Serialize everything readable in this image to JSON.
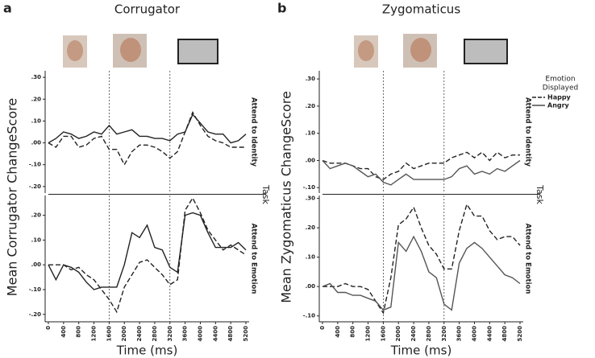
{
  "panels": [
    {
      "label": "a",
      "title": "Corrugator",
      "ylabel": "Mean Corrugator ChangeScore",
      "xlabel": "Time (ms)",
      "task_label": "Task"
    },
    {
      "label": "b",
      "title": "Zygomaticus",
      "ylabel": "Mean Zygomaticus ChangeScore",
      "xlabel": "Time (ms)",
      "task_label": "Task"
    }
  ],
  "legend": {
    "title": [
      "Emotion",
      "Displayed"
    ],
    "position": "upper right"
  },
  "chart_data": [
    {
      "type": "line",
      "title": "Attend to Identity",
      "x": [
        0,
        200,
        400,
        600,
        800,
        1000,
        1200,
        1400,
        1600,
        1800,
        2000,
        2200,
        2400,
        2600,
        2800,
        3000,
        3200,
        3400,
        3600,
        3800,
        4000,
        4200,
        4400,
        4600,
        4800,
        5000,
        5200
      ],
      "xlim": [
        0,
        5200
      ],
      "ylim": [
        -0.23,
        0.33
      ],
      "vlines": [
        1600,
        3200
      ],
      "yticks": [
        {
          "value": 0.3,
          "label": ".30"
        },
        {
          "value": 0.2,
          "label": ".20"
        },
        {
          "value": 0.1,
          "label": ".10"
        },
        {
          "value": 0,
          "label": ".00"
        },
        {
          "value": -0.1,
          "label": "-.10"
        },
        {
          "value": -0.2,
          "label": "-.20"
        }
      ],
      "series": [
        {
          "name": "Happy",
          "color": "#222222",
          "dash": "dashed",
          "values": [
            0,
            -0.02,
            0.03,
            0.03,
            -0.02,
            -0.01,
            0.02,
            0.03,
            -0.03,
            -0.03,
            -0.1,
            -0.04,
            -0.01,
            -0.01,
            -0.02,
            -0.04,
            -0.07,
            -0.04,
            0.05,
            0.14,
            0.08,
            0.03,
            0.01,
            0,
            -0.02,
            -0.02,
            -0.02
          ]
        },
        {
          "name": "Angry",
          "color": "#222222",
          "dash": "solid",
          "values": [
            0,
            0.02,
            0.05,
            0.04,
            0.02,
            0.03,
            0.05,
            0.04,
            0.08,
            0.04,
            0.05,
            0.06,
            0.03,
            0.03,
            0.02,
            0.02,
            0.01,
            0.04,
            0.05,
            0.13,
            0.09,
            0.05,
            0.04,
            0.04,
            0,
            0.01,
            0.04
          ]
        }
      ]
    },
    {
      "type": "line",
      "title": "Attend to Emotion",
      "x": [
        0,
        200,
        400,
        600,
        800,
        1000,
        1200,
        1400,
        1600,
        1800,
        2000,
        2200,
        2400,
        2600,
        2800,
        3000,
        3200,
        3400,
        3600,
        3800,
        4000,
        4200,
        4400,
        4600,
        4800,
        5000,
        5200
      ],
      "xlim": [
        0,
        5200
      ],
      "ylim": [
        -0.23,
        0.28
      ],
      "vlines": [
        1600,
        3200
      ],
      "xticks": [
        0,
        400,
        800,
        1200,
        1600,
        2000,
        2400,
        2800,
        3200,
        3600,
        4000,
        4400,
        4800,
        5200
      ],
      "yticks": [
        {
          "value": 0.2,
          "label": ".20"
        },
        {
          "value": 0.1,
          "label": ".10"
        },
        {
          "value": 0,
          "label": ".00"
        },
        {
          "value": -0.1,
          "label": "-.10"
        },
        {
          "value": -0.2,
          "label": "-.20"
        }
      ],
      "series": [
        {
          "name": "Happy",
          "color": "#222222",
          "dash": "dashed",
          "values": [
            0,
            0,
            0,
            -0.02,
            -0.01,
            -0.04,
            -0.06,
            -0.1,
            -0.14,
            -0.19,
            -0.09,
            -0.04,
            0.01,
            0.02,
            -0.01,
            -0.04,
            -0.08,
            -0.06,
            0.22,
            0.27,
            0.21,
            0.14,
            0.1,
            0.06,
            0.08,
            0.06,
            0.04
          ]
        },
        {
          "name": "Angry",
          "color": "#222222",
          "dash": "solid",
          "values": [
            0,
            -0.06,
            0,
            -0.01,
            -0.03,
            -0.07,
            -0.1,
            -0.09,
            -0.09,
            -0.09,
            0,
            0.13,
            0.11,
            0.16,
            0.07,
            0.06,
            -0.01,
            -0.03,
            0.2,
            0.21,
            0.2,
            0.13,
            0.07,
            0.07,
            0.07,
            0.09,
            0.06
          ]
        }
      ]
    },
    {
      "type": "line",
      "title": "Attend to Identity",
      "x": [
        0,
        200,
        400,
        600,
        800,
        1000,
        1200,
        1400,
        1600,
        1800,
        2000,
        2200,
        2400,
        2600,
        2800,
        3000,
        3200,
        3400,
        3600,
        3800,
        4000,
        4200,
        4400,
        4600,
        4800,
        5000,
        5200
      ],
      "xlim": [
        0,
        5200
      ],
      "ylim": [
        -0.12,
        0.33
      ],
      "vlines": [
        1600,
        3200
      ],
      "yticks": [
        {
          "value": 0.3,
          "label": ".30"
        },
        {
          "value": 0.2,
          "label": ".20"
        },
        {
          "value": 0.1,
          "label": ".10"
        },
        {
          "value": 0,
          "label": ".00"
        },
        {
          "value": -0.1,
          "label": "-.10"
        }
      ],
      "series": [
        {
          "name": "Happy",
          "color": "#222222",
          "dash": "dashed",
          "values": [
            0,
            -0.01,
            -0.01,
            -0.01,
            -0.02,
            -0.03,
            -0.03,
            -0.06,
            -0.07,
            -0.05,
            -0.04,
            -0.01,
            -0.03,
            -0.02,
            -0.01,
            -0.01,
            -0.01,
            0.01,
            0.02,
            0.03,
            0.01,
            0.03,
            0,
            0.03,
            0.01,
            0.02,
            0.02
          ]
        },
        {
          "name": "Angry",
          "color": "#555555",
          "dash": "solid",
          "values": [
            0,
            -0.03,
            -0.02,
            -0.01,
            -0.02,
            -0.04,
            -0.06,
            -0.05,
            -0.08,
            -0.09,
            -0.07,
            -0.05,
            -0.07,
            -0.07,
            -0.07,
            -0.07,
            -0.07,
            -0.06,
            -0.03,
            -0.02,
            -0.05,
            -0.04,
            -0.05,
            -0.03,
            -0.04,
            -0.02,
            0
          ]
        }
      ]
    },
    {
      "type": "line",
      "title": "Attend to Emotion",
      "x": [
        0,
        200,
        400,
        600,
        800,
        1000,
        1200,
        1400,
        1600,
        1800,
        2000,
        2200,
        2400,
        2600,
        2800,
        3000,
        3200,
        3400,
        3600,
        3800,
        4000,
        4200,
        4400,
        4600,
        4800,
        5000,
        5200
      ],
      "xlim": [
        0,
        5200
      ],
      "ylim": [
        -0.12,
        0.31
      ],
      "vlines": [
        1600,
        3200
      ],
      "xticks": [
        0,
        400,
        800,
        1200,
        1600,
        2000,
        2400,
        2800,
        3200,
        3600,
        4000,
        4400,
        4800,
        5200
      ],
      "yticks": [
        {
          "value": 0.3,
          "label": ".30"
        },
        {
          "value": 0.2,
          "label": ".20"
        },
        {
          "value": 0.1,
          "label": ".10"
        },
        {
          "value": 0,
          "label": ".00"
        },
        {
          "value": -0.1,
          "label": "-.10"
        }
      ],
      "series": [
        {
          "name": "Happy",
          "color": "#222222",
          "dash": "dashed",
          "values": [
            0,
            0,
            0,
            0.01,
            0,
            0,
            -0.01,
            -0.05,
            -0.09,
            0.03,
            0.21,
            0.23,
            0.27,
            0.2,
            0.14,
            0.11,
            0.06,
            0.06,
            0.19,
            0.28,
            0.24,
            0.24,
            0.19,
            0.16,
            0.17,
            0.17,
            0.14
          ]
        },
        {
          "name": "Angry",
          "color": "#555555",
          "dash": "solid",
          "values": [
            0,
            0.01,
            -0.02,
            -0.02,
            -0.03,
            -0.03,
            -0.04,
            -0.05,
            -0.08,
            -0.07,
            0.15,
            0.12,
            0.17,
            0.12,
            0.05,
            0.03,
            -0.06,
            -0.08,
            0.08,
            0.13,
            0.15,
            0.13,
            0.1,
            0.07,
            0.04,
            0.03,
            0.01
          ]
        }
      ]
    }
  ]
}
